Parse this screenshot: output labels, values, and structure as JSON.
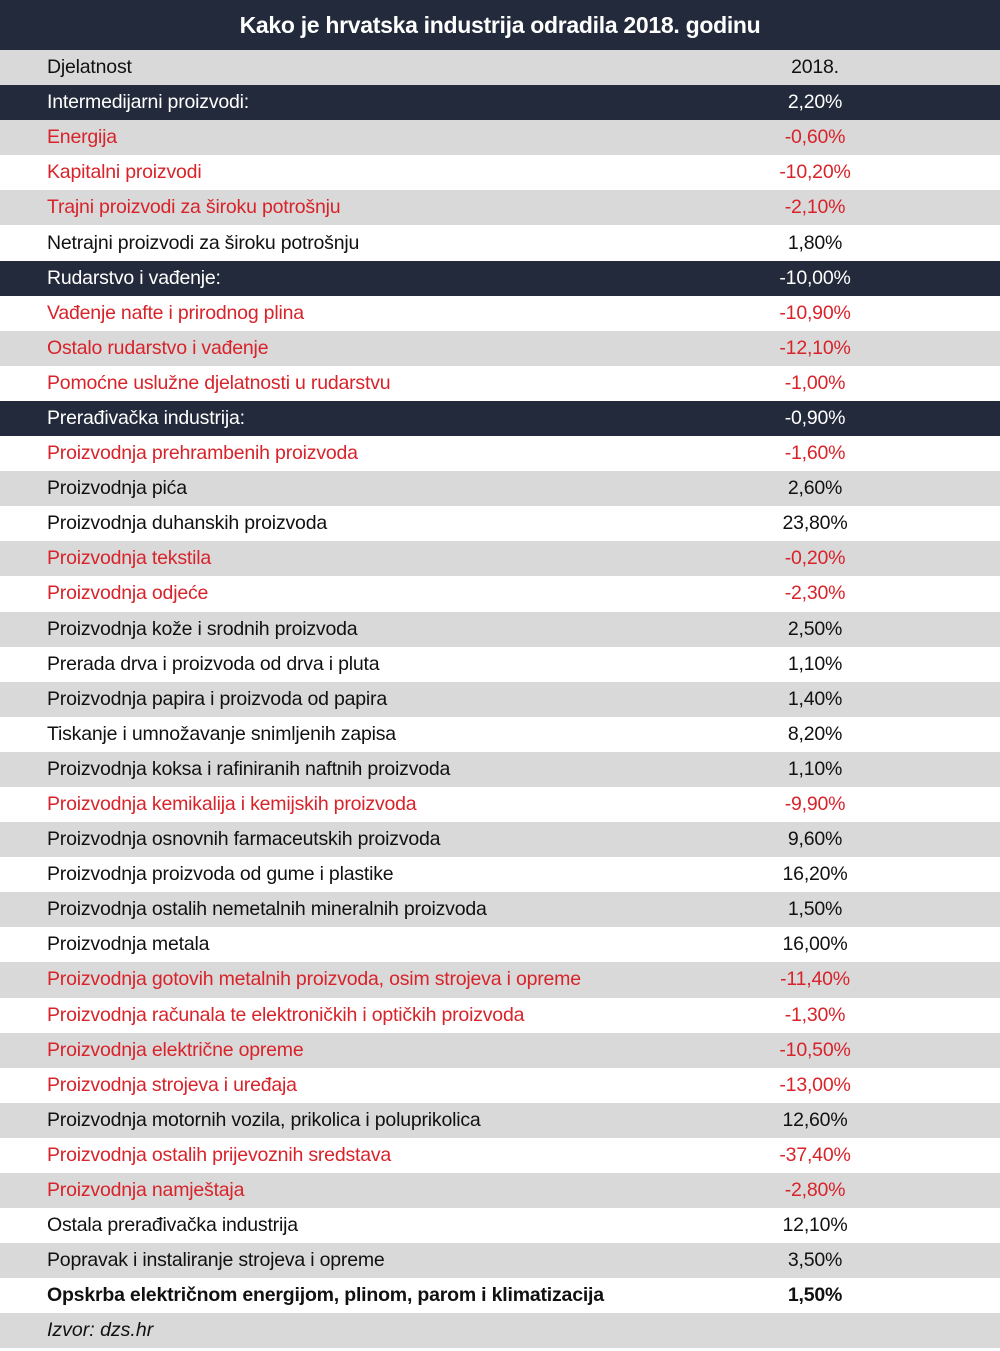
{
  "chart_data": {
    "type": "table",
    "title": "Kako je hrvatska industrija odradila 2018. godinu",
    "columns": [
      "Djelatnost",
      "2018."
    ],
    "rows": [
      {
        "label": "Intermedijarni proizvodi:",
        "value": "2,20%",
        "style": "dark"
      },
      {
        "label": "Energija",
        "value": "-0,60%",
        "style": "neg"
      },
      {
        "label": "Kapitalni proizvodi",
        "value": "-10,20%",
        "style": "neg"
      },
      {
        "label": "Trajni proizvodi za široku potrošnju",
        "value": "-2,10%",
        "style": "neg"
      },
      {
        "label": "Netrajni proizvodi za široku potrošnju",
        "value": "1,80%",
        "style": "pos"
      },
      {
        "label": "Rudarstvo i vađenje:",
        "value": "-10,00%",
        "style": "dark"
      },
      {
        "label": "Vađenje nafte i prirodnog plina",
        "value": "-10,90%",
        "style": "neg"
      },
      {
        "label": "Ostalo rudarstvo i vađenje",
        "value": "-12,10%",
        "style": "neg"
      },
      {
        "label": "Pomoćne uslužne djelatnosti u rudarstvu",
        "value": "-1,00%",
        "style": "neg"
      },
      {
        "label": "Prerađivačka industrija:",
        "value": "-0,90%",
        "style": "dark"
      },
      {
        "label": "Proizvodnja prehrambenih proizvoda",
        "value": "-1,60%",
        "style": "neg"
      },
      {
        "label": "Proizvodnja pića",
        "value": "2,60%",
        "style": "pos"
      },
      {
        "label": "Proizvodnja duhanskih proizvoda",
        "value": "23,80%",
        "style": "pos"
      },
      {
        "label": "Proizvodnja tekstila",
        "value": "-0,20%",
        "style": "neg"
      },
      {
        "label": "Proizvodnja odjeće",
        "value": "-2,30%",
        "style": "neg"
      },
      {
        "label": "Proizvodnja kože i srodnih proizvoda",
        "value": "2,50%",
        "style": "pos"
      },
      {
        "label": "Prerada drva i proizvoda od drva i pluta",
        "value": "1,10%",
        "style": "pos"
      },
      {
        "label": "Proizvodnja papira i proizvoda od papira",
        "value": "1,40%",
        "style": "pos"
      },
      {
        "label": "Tiskanje i umnožavanje snimljenih zapisa",
        "value": "8,20%",
        "style": "pos"
      },
      {
        "label": "Proizvodnja koksa i rafiniranih naftnih proizvoda",
        "value": "1,10%",
        "style": "pos"
      },
      {
        "label": "Proizvodnja kemikalija i kemijskih proizvoda",
        "value": "-9,90%",
        "style": "neg"
      },
      {
        "label": "Proizvodnja osnovnih farmaceutskih proizvoda",
        "value": "9,60%",
        "style": "pos"
      },
      {
        "label": "Proizvodnja proizvoda od gume i plastike",
        "value": "16,20%",
        "style": "pos"
      },
      {
        "label": "Proizvodnja ostalih nemetalnih mineralnih proizvoda",
        "value": "1,50%",
        "style": "pos"
      },
      {
        "label": "Proizvodnja metala",
        "value": "16,00%",
        "style": "pos"
      },
      {
        "label": "Proizvodnja gotovih metalnih proizvoda, osim strojeva i opreme",
        "value": "-11,40%",
        "style": "neg"
      },
      {
        "label": "Proizvodnja računala te elektroničkih i optičkih proizvoda",
        "value": "-1,30%",
        "style": "neg"
      },
      {
        "label": "Proizvodnja električne opreme",
        "value": "-10,50%",
        "style": "neg"
      },
      {
        "label": "Proizvodnja strojeva i uređaja",
        "value": "-13,00%",
        "style": "neg"
      },
      {
        "label": "Proizvodnja motornih vozila, prikolica i poluprikolica",
        "value": "12,60%",
        "style": "pos"
      },
      {
        "label": "Proizvodnja ostalih prijevoznih sredstava",
        "value": "-37,40%",
        "style": "neg"
      },
      {
        "label": "Proizvodnja namještaja",
        "value": "-2,80%",
        "style": "neg"
      },
      {
        "label": "Ostala prerađivačka industrija",
        "value": "12,10%",
        "style": "pos"
      },
      {
        "label": "Popravak i instaliranje strojeva i opreme",
        "value": "3,50%",
        "style": "pos"
      },
      {
        "label": "Opskrba električnom energijom, plinom, parom i klimatizacija",
        "value": "1,50%",
        "style": "bold"
      }
    ],
    "source": "Izvor: dzs.hr"
  },
  "colors": {
    "header_bg": "#232a3b",
    "row_gray": "#d9d9d9",
    "negative_text": "#d8232a",
    "text": "#111111"
  }
}
